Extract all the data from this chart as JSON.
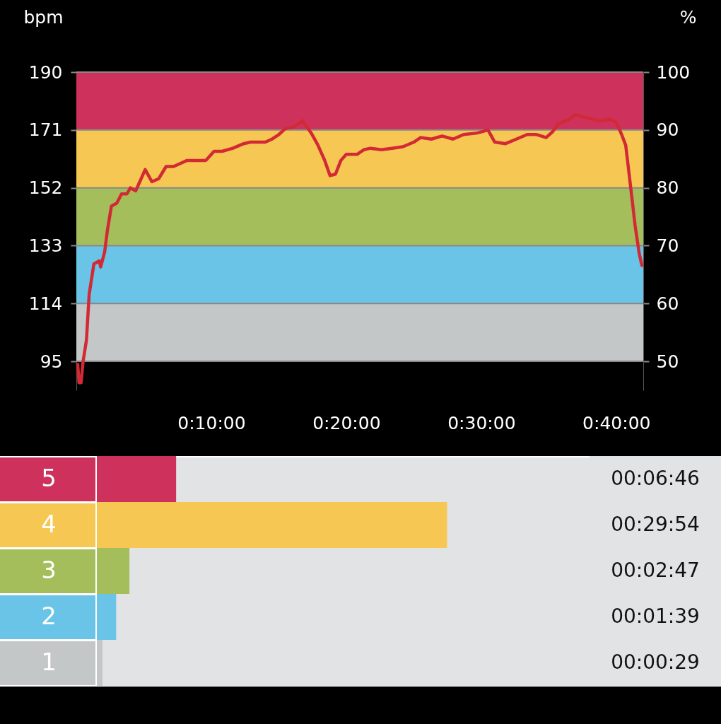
{
  "chart_data": [
    {
      "type": "line",
      "ylabel": "bpm",
      "y2label": "%",
      "x": [
        0.1,
        0.2,
        0.35,
        0.5,
        0.75,
        0.95,
        1.3,
        1.7,
        1.8,
        2.1,
        2.3,
        2.6,
        3.0,
        3.35,
        3.75,
        4.0,
        4.4,
        4.7,
        5.1,
        5.6,
        6.1,
        6.65,
        7.2,
        7.7,
        8.2,
        9.0,
        9.6,
        10.2,
        10.8,
        11.6,
        12.4,
        12.9,
        14.0,
        14.5,
        15.0,
        15.5,
        16.1,
        16.75,
        17.4,
        17.9,
        18.4,
        18.8,
        19.2,
        19.6,
        20.0,
        20.8,
        21.3,
        21.8,
        22.6,
        23.4,
        24.2,
        25.0,
        25.5,
        26.3,
        27.1,
        27.9,
        28.7,
        29.7,
        30.5,
        31.0,
        31.8,
        32.6,
        33.4,
        34.1,
        34.8,
        35.3,
        35.7,
        36.5,
        37.0,
        37.8,
        38.8,
        39.5,
        40.0,
        40.4,
        40.7,
        41.1,
        41.4,
        41.7,
        41.9
      ],
      "series": [
        {
          "color": "#d22a35",
          "values": [
            94,
            88,
            88,
            95,
            102,
            117,
            127,
            128,
            126,
            131,
            138,
            146,
            147,
            150,
            150,
            152,
            151,
            154,
            158,
            154,
            155,
            159,
            159,
            160,
            161,
            161,
            161,
            164,
            164,
            165,
            166.5,
            167,
            167,
            168,
            169.5,
            171.5,
            172,
            174,
            170,
            166,
            161,
            156,
            156.5,
            161,
            163,
            163,
            164.5,
            165,
            164.5,
            165,
            165.5,
            167,
            168.5,
            168,
            169,
            168,
            169.5,
            170,
            171,
            167,
            166.5,
            168,
            169.5,
            169.5,
            168.5,
            170.5,
            173,
            174.5,
            176,
            175,
            174,
            174.5,
            173.5,
            169.5,
            166,
            151,
            139.5,
            130.5,
            126.5
          ]
        }
      ],
      "xlim": [
        0,
        42
      ],
      "xticks": [
        {
          "value": 10,
          "label": "0:10:00"
        },
        {
          "value": 20,
          "label": "0:20:00"
        },
        {
          "value": 30,
          "label": "0:30:00"
        },
        {
          "value": 40,
          "label": "0:40:00"
        }
      ],
      "ylim": [
        85.5,
        190
      ],
      "yticks": [
        95,
        114,
        133,
        152,
        171,
        190
      ],
      "y2lim": [
        45,
        100
      ],
      "y2ticks": [
        50,
        60,
        70,
        80,
        90,
        100
      ],
      "bands": [
        {
          "axis": "y",
          "from": 95,
          "to": 114,
          "color": "#c3c7c7"
        },
        {
          "axis": "y",
          "from": 114,
          "to": 133,
          "color": "#6ac4e8"
        },
        {
          "axis": "y",
          "from": 133,
          "to": 152,
          "color": "#a5be5c"
        },
        {
          "axis": "y",
          "from": 152,
          "to": 171,
          "color": "#f6c853"
        },
        {
          "axis": "y",
          "from": 171,
          "to": 190,
          "color": "#cd315c"
        }
      ],
      "grid": true
    },
    {
      "type": "bar",
      "orientation": "horizontal",
      "categories": [
        "5",
        "4",
        "3",
        "2",
        "1"
      ],
      "values": [
        406,
        1794,
        167,
        99,
        29
      ],
      "colors": [
        "#cd315c",
        "#f6c853",
        "#a5be5c",
        "#6ac4e8",
        "#c3c7c7"
      ],
      "value_labels": [
        "00:06:46",
        "00:29:54",
        "00:02:47",
        "00:01:39",
        "00:00:29"
      ],
      "xlim": [
        0,
        2520
      ],
      "tick_labels": "y"
    }
  ]
}
